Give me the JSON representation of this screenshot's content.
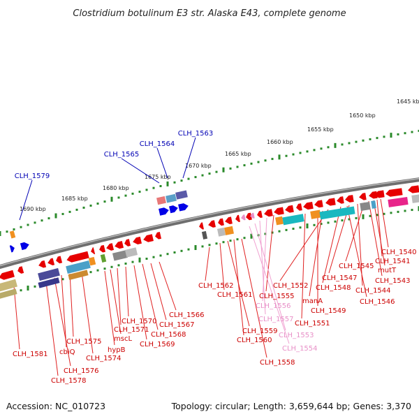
{
  "title": "Clostridium botulinum E3 str. Alaska E43, complete genome",
  "footer": {
    "accession": "Accession: NC_010723",
    "summary": "Topology: circular; Length: 3,659,644 bp; Genes: 3,370"
  },
  "colors": {
    "forward_strand": "#e60000",
    "reverse_strand": "#0000e6",
    "pseudogene": "#e890c8",
    "ruler": "#2a8a2a",
    "backbone": "#888888"
  },
  "ruler_labels": [
    "1645 kbp",
    "1650 kbp",
    "1655 kbp",
    "1660 kbp",
    "1665 kbp",
    "1670 kbp",
    "1675 kbp",
    "1680 kbp",
    "1685 kbp",
    "1690 kbp"
  ],
  "genes_top": [
    {
      "label": "CLH_1563",
      "color": "#0000b4"
    },
    {
      "label": "CLH_1564",
      "color": "#0000b4"
    },
    {
      "label": "CLH_1565",
      "color": "#0000b4"
    },
    {
      "label": "CLH_1579",
      "color": "#0000b4"
    }
  ],
  "genes_bottom": [
    {
      "label": "CLH_1540",
      "color": "#cc0000"
    },
    {
      "label": "CLH_1541",
      "color": "#cc0000"
    },
    {
      "label": "mutT",
      "color": "#cc0000"
    },
    {
      "label": "CLH_1543",
      "color": "#cc0000"
    },
    {
      "label": "CLH_1545",
      "color": "#cc0000"
    },
    {
      "label": "CLH_1544",
      "color": "#cc0000"
    },
    {
      "label": "CLH_1547",
      "color": "#cc0000"
    },
    {
      "label": "CLH_1546",
      "color": "#cc0000"
    },
    {
      "label": "CLH_1548",
      "color": "#cc0000"
    },
    {
      "label": "CLH_1552",
      "color": "#cc0000"
    },
    {
      "label": "manA",
      "color": "#cc0000"
    },
    {
      "label": "CLH_1549",
      "color": "#cc0000"
    },
    {
      "label": "CLH_1551",
      "color": "#cc0000"
    },
    {
      "label": "CLH_1555",
      "color": "#cc0000"
    },
    {
      "label": "CLH_1556",
      "color": "#e890c8"
    },
    {
      "label": "CLH_1557",
      "color": "#e890c8"
    },
    {
      "label": "CLH_1553",
      "color": "#e890c8"
    },
    {
      "label": "CLH_1554",
      "color": "#e890c8"
    },
    {
      "label": "CLH_1562",
      "color": "#cc0000"
    },
    {
      "label": "CLH_1561",
      "color": "#cc0000"
    },
    {
      "label": "CLH_1559",
      "color": "#cc0000"
    },
    {
      "label": "CLH_1560",
      "color": "#cc0000"
    },
    {
      "label": "CLH_1558",
      "color": "#cc0000"
    },
    {
      "label": "CLH_1566",
      "color": "#cc0000"
    },
    {
      "label": "CLH_1567",
      "color": "#cc0000"
    },
    {
      "label": "CLH_1568",
      "color": "#cc0000"
    },
    {
      "label": "CLH_1569",
      "color": "#cc0000"
    },
    {
      "label": "CLH_1570",
      "color": "#cc0000"
    },
    {
      "label": "CLH_1571",
      "color": "#cc0000"
    },
    {
      "label": "mscL",
      "color": "#cc0000"
    },
    {
      "label": "hypB",
      "color": "#cc0000"
    },
    {
      "label": "CLH_1574",
      "color": "#cc0000"
    },
    {
      "label": "CLH_1575",
      "color": "#cc0000"
    },
    {
      "label": "cbiQ",
      "color": "#cc0000"
    },
    {
      "label": "CLH_1576",
      "color": "#cc0000"
    },
    {
      "label": "CLH_1578",
      "color": "#cc0000"
    },
    {
      "label": "CLH_1581",
      "color": "#cc0000"
    }
  ]
}
